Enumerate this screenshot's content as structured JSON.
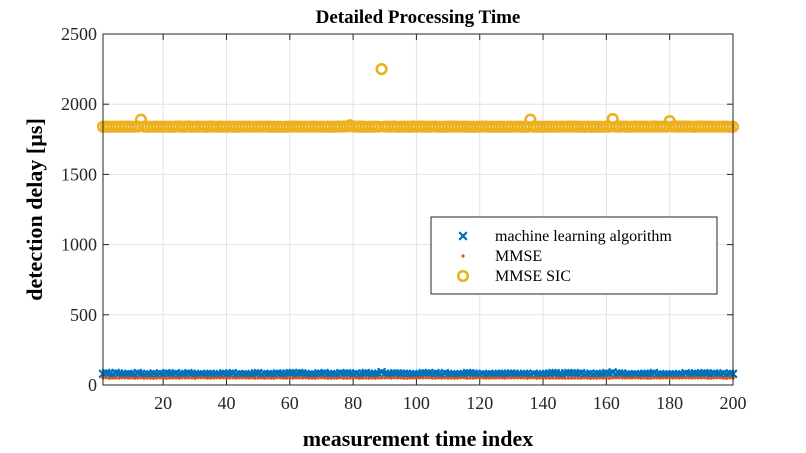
{
  "chart_data": {
    "type": "scatter",
    "title": "Detailed Processing Time",
    "xlabel": "measurement time index",
    "ylabel": "detection delay [µs]",
    "xlim": [
      1,
      200
    ],
    "ylim": [
      0,
      2500
    ],
    "xticks": [
      20,
      40,
      60,
      80,
      100,
      120,
      140,
      160,
      180,
      200
    ],
    "yticks": [
      0,
      500,
      1000,
      1500,
      2000,
      2500
    ],
    "grid": true,
    "legend_position": "center-right",
    "colors": {
      "ml": "#0072BD",
      "mmse": "#D95319",
      "sic": "#EDB120",
      "axis": "#262626",
      "grid": "#e3e3e3"
    },
    "series": [
      {
        "name": "machine learning algorithm",
        "marker": "x",
        "base": 80,
        "spikes": [
          [
            5,
            86
          ],
          [
            89,
            92
          ],
          [
            162,
            90
          ],
          [
            185,
            84
          ]
        ]
      },
      {
        "name": "MMSE",
        "marker": "dot",
        "base": 50,
        "spikes": []
      },
      {
        "name": "MMSE SIC",
        "marker": "circle",
        "base": 1840,
        "spikes": [
          [
            13,
            1890
          ],
          [
            79,
            1850
          ],
          [
            89,
            2250
          ],
          [
            136,
            1890
          ],
          [
            162,
            1895
          ],
          [
            180,
            1880
          ]
        ]
      }
    ]
  }
}
